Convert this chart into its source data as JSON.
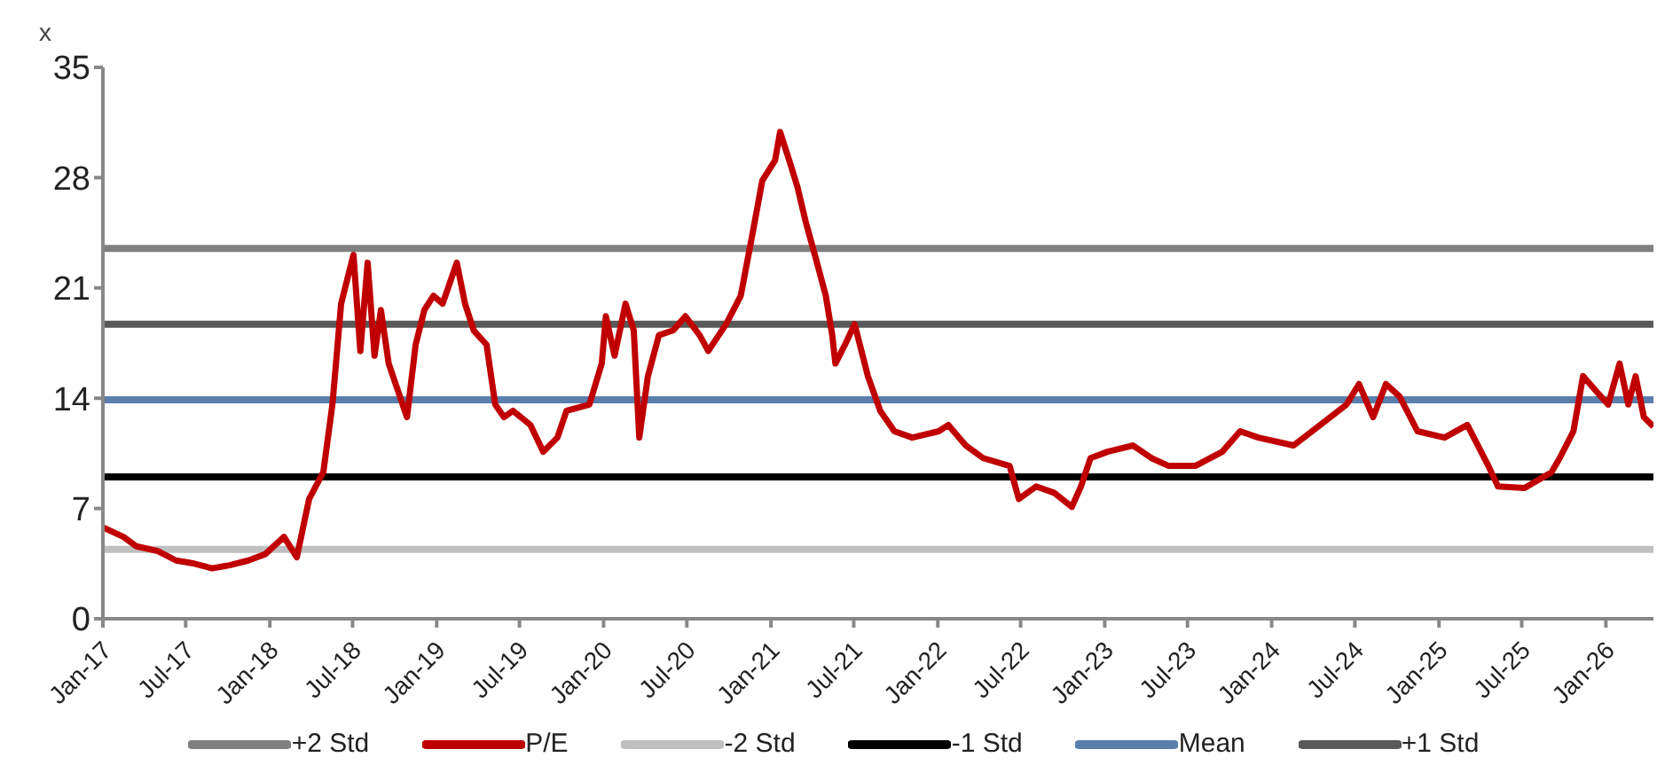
{
  "chart_data": {
    "type": "line",
    "ylabel": "x",
    "xlim": [
      "2017-01-01",
      "2026-04-15"
    ],
    "ylim": [
      0,
      35
    ],
    "yticks": [
      0,
      7,
      14,
      21,
      28,
      35
    ],
    "xticks": [
      {
        "value": "2017-01",
        "label": "Jan-17"
      },
      {
        "value": "2017-07",
        "label": "Jul-17"
      },
      {
        "value": "2018-01",
        "label": "Jan-18"
      },
      {
        "value": "2018-07",
        "label": "Jul-18"
      },
      {
        "value": "2019-01",
        "label": "Jan-19"
      },
      {
        "value": "2019-07",
        "label": "Jul-19"
      },
      {
        "value": "2020-01",
        "label": "Jan-20"
      },
      {
        "value": "2020-07",
        "label": "Jul-20"
      },
      {
        "value": "2021-01",
        "label": "Jan-21"
      },
      {
        "value": "2021-07",
        "label": "Jul-21"
      },
      {
        "value": "2022-01",
        "label": "Jan-22"
      },
      {
        "value": "2022-07",
        "label": "Jul-22"
      },
      {
        "value": "2023-01",
        "label": "Jan-23"
      },
      {
        "value": "2023-07",
        "label": "Jul-23"
      },
      {
        "value": "2024-01",
        "label": "Jan-24"
      },
      {
        "value": "2024-07",
        "label": "Jul-24"
      },
      {
        "value": "2025-01",
        "label": "Jan-25"
      },
      {
        "value": "2025-07",
        "label": "Jul-25"
      },
      {
        "value": "2026-01",
        "label": "Jan-26"
      }
    ],
    "grid": false,
    "legend": "bottom",
    "marker": "none",
    "line_style": "solid",
    "series": [
      {
        "name": "+2 Std",
        "color": "#808080",
        "x": [
          "2017-01-01",
          "2026-04-15"
        ],
        "values": [
          23.5,
          23.5
        ]
      },
      {
        "name": "P/E",
        "color": "#c00000",
        "x": [
          "2017-01-01",
          "2017-02-15",
          "2017-03-15",
          "2017-05-01",
          "2017-06-10",
          "2017-07-20",
          "2017-08-28",
          "2017-10-05",
          "2017-11-15",
          "2017-12-22",
          "2018-02-01",
          "2018-03-01",
          "2018-03-28",
          "2018-04-28",
          "2018-05-18",
          "2018-06-06",
          "2018-07-03",
          "2018-07-18",
          "2018-08-03",
          "2018-08-18",
          "2018-09-01",
          "2018-09-18",
          "2018-10-08",
          "2018-10-28",
          "2018-11-16",
          "2018-12-05",
          "2018-12-25",
          "2019-01-14",
          "2019-02-14",
          "2019-03-04",
          "2019-03-23",
          "2019-04-20",
          "2019-05-09",
          "2019-05-28",
          "2019-06-17",
          "2019-07-25",
          "2019-08-22",
          "2019-09-22",
          "2019-10-12",
          "2019-12-01",
          "2019-12-28",
          "2020-01-06",
          "2020-01-25",
          "2020-02-18",
          "2020-03-07",
          "2020-03-19",
          "2020-04-07",
          "2020-05-01",
          "2020-06-01",
          "2020-06-28",
          "2020-07-29",
          "2020-08-17",
          "2020-09-25",
          "2020-10-27",
          "2020-11-24",
          "2020-12-13",
          "2021-01-10",
          "2021-01-21",
          "2021-02-10",
          "2021-02-28",
          "2021-03-18",
          "2021-04-07",
          "2021-05-01",
          "2021-05-15",
          "2021-05-22",
          "2021-06-12",
          "2021-07-03",
          "2021-08-01",
          "2021-08-28",
          "2021-09-28",
          "2021-11-06",
          "2022-01-03",
          "2022-01-24",
          "2022-03-03",
          "2022-04-10",
          "2022-06-07",
          "2022-06-27",
          "2022-08-04",
          "2022-09-12",
          "2022-10-21",
          "2022-11-10",
          "2022-12-01",
          "2023-01-07",
          "2023-03-04",
          "2023-04-13",
          "2023-05-21",
          "2023-07-18",
          "2023-09-15",
          "2023-10-24",
          "2023-12-03",
          "2024-02-18",
          "2024-04-16",
          "2024-06-13",
          "2024-07-10",
          "2024-08-10",
          "2024-09-07",
          "2024-10-07",
          "2024-11-15",
          "2025-01-13",
          "2025-03-04",
          "2025-04-19",
          "2025-05-10",
          "2025-07-07",
          "2025-09-04",
          "2025-09-22",
          "2025-10-22",
          "2025-11-12",
          "2025-12-09",
          "2026-01-06",
          "2026-01-31",
          "2026-02-19",
          "2026-03-07",
          "2026-03-25",
          "2026-04-15"
        ],
        "values": [
          5.8,
          5.2,
          4.6,
          4.3,
          3.7,
          3.5,
          3.2,
          3.4,
          3.7,
          4.1,
          5.2,
          3.9,
          7.6,
          9.3,
          13.6,
          20,
          23.1,
          17,
          22.6,
          16.7,
          19.6,
          16.2,
          14.5,
          12.8,
          17.4,
          19.6,
          20.5,
          20,
          22.6,
          20,
          18.3,
          17.4,
          13.6,
          12.8,
          13.2,
          12.3,
          10.6,
          11.5,
          13.2,
          13.6,
          16.2,
          19.2,
          16.7,
          20,
          18.3,
          11.5,
          15.4,
          18,
          18.3,
          19.2,
          18,
          17,
          18.7,
          20.5,
          24.8,
          27.8,
          29.1,
          30.9,
          29.1,
          27.4,
          25.2,
          23.1,
          20.5,
          18,
          16.2,
          17.4,
          18.7,
          15.4,
          13.2,
          11.9,
          11.5,
          11.9,
          12.3,
          11,
          10.2,
          9.7,
          7.6,
          8.4,
          8,
          7.1,
          8.4,
          10.2,
          10.6,
          11,
          10.2,
          9.7,
          9.7,
          10.6,
          11.9,
          11.5,
          11,
          12.3,
          13.6,
          14.9,
          12.8,
          14.9,
          14.1,
          11.9,
          11.5,
          12.3,
          9.7,
          8.4,
          8.3,
          9.3,
          10.2,
          11.9,
          15.4,
          14.5,
          13.6,
          16.2,
          13.6,
          15.4,
          12.8,
          12.2
        ]
      },
      {
        "name": "-2 Std",
        "color": "#bfbfbf",
        "x": [
          "2017-01-01",
          "2026-04-15"
        ],
        "values": [
          4.4,
          4.4
        ]
      },
      {
        "name": "-1 Std",
        "color": "#000000",
        "x": [
          "2017-01-01",
          "2026-04-15"
        ],
        "values": [
          9.0,
          9.0
        ]
      },
      {
        "name": "Mean",
        "color": "#5b7fad",
        "x": [
          "2017-01-01",
          "2026-04-15"
        ],
        "values": [
          13.9,
          13.9
        ]
      },
      {
        "name": "+1 Std",
        "color": "#595959",
        "x": [
          "2017-01-01",
          "2026-04-15"
        ],
        "values": [
          18.7,
          18.7
        ]
      }
    ]
  }
}
